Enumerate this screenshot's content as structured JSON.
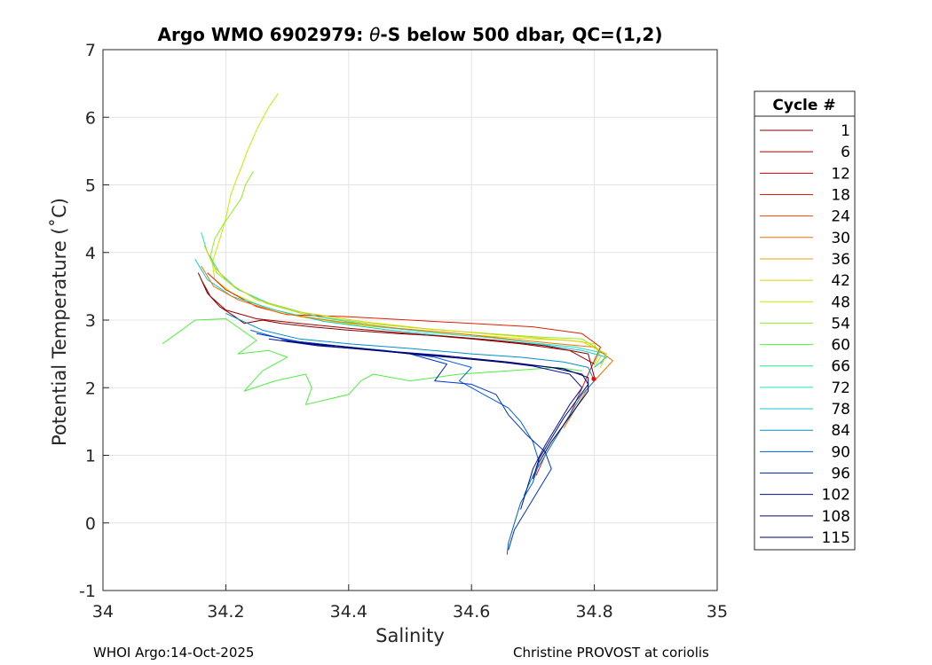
{
  "chart_data": {
    "type": "line",
    "title_prefix": "Argo WMO 6902979: ",
    "title_theta": "θ",
    "title_suffix": "-S below 500 dbar,  QC=(1,2)",
    "xlabel": "Salinity",
    "ylabel": "Potential Temperature (˚C)",
    "xlim": [
      34,
      35
    ],
    "ylim": [
      -1,
      7
    ],
    "xticks": [
      "34",
      "34.2",
      "34.4",
      "34.6",
      "34.8",
      "35"
    ],
    "yticks": [
      "-1",
      "0",
      "1",
      "2",
      "3",
      "4",
      "5",
      "6",
      "7"
    ],
    "grid": true,
    "legend": {
      "title": "Cycle #",
      "placement": "outside-right",
      "entries": [
        "1",
        "6",
        "12",
        "18",
        "24",
        "30",
        "36",
        "42",
        "48",
        "54",
        "60",
        "66",
        "72",
        "78",
        "84",
        "90",
        "96",
        "102",
        "108",
        "115"
      ],
      "colors": [
        "#7f0000",
        "#a00000",
        "#c80000",
        "#e01e00",
        "#f04000",
        "#f07000",
        "#e8a000",
        "#e0d000",
        "#c8e800",
        "#90ec20",
        "#50ee40",
        "#20e880",
        "#20e0c0",
        "#10c8d0",
        "#0090c8",
        "#0060d0",
        "#0030c8",
        "#0010a0",
        "#000878",
        "#000060"
      ]
    },
    "series": [
      {
        "color": "#c8e800",
        "values": [
          [
            34.285,
            6.35
          ],
          [
            34.27,
            6.15
          ],
          [
            34.252,
            5.85
          ],
          [
            34.235,
            5.5
          ],
          [
            34.225,
            5.25
          ],
          [
            34.218,
            5.1
          ],
          [
            34.208,
            4.85
          ],
          [
            34.2,
            4.5
          ],
          [
            34.192,
            4.25
          ],
          [
            34.185,
            4.05
          ],
          [
            34.178,
            3.85
          ],
          [
            34.182,
            3.6
          ],
          [
            34.21,
            3.4
          ],
          [
            34.26,
            3.2
          ],
          [
            34.32,
            3.05
          ],
          [
            34.42,
            2.92
          ],
          [
            34.52,
            2.84
          ],
          [
            34.6,
            2.78
          ],
          [
            34.68,
            2.73
          ],
          [
            34.76,
            2.7
          ],
          [
            34.8,
            2.65
          ],
          [
            34.81,
            2.45
          ],
          [
            34.8,
            2.3
          ]
        ]
      },
      {
        "color": "#90ec20",
        "values": [
          [
            34.245,
            5.2
          ],
          [
            34.232,
            5.0
          ],
          [
            34.225,
            4.8
          ],
          [
            34.21,
            4.6
          ],
          [
            34.195,
            4.4
          ],
          [
            34.182,
            4.2
          ],
          [
            34.175,
            3.95
          ],
          [
            34.185,
            3.7
          ],
          [
            34.215,
            3.48
          ],
          [
            34.265,
            3.25
          ],
          [
            34.33,
            3.08
          ],
          [
            34.43,
            2.95
          ],
          [
            34.54,
            2.86
          ],
          [
            34.63,
            2.8
          ],
          [
            34.71,
            2.75
          ],
          [
            34.78,
            2.72
          ],
          [
            34.81,
            2.55
          ],
          [
            34.8,
            2.35
          ]
        ]
      },
      {
        "color": "#e01e00",
        "values": [
          [
            34.17,
            3.7
          ],
          [
            34.2,
            3.45
          ],
          [
            34.25,
            3.2
          ],
          [
            34.3,
            3.08
          ],
          [
            34.4,
            3.05
          ],
          [
            34.5,
            3.0
          ],
          [
            34.6,
            2.95
          ],
          [
            34.7,
            2.9
          ],
          [
            34.78,
            2.8
          ],
          [
            34.81,
            2.6
          ],
          [
            34.8,
            2.4
          ],
          [
            34.79,
            2.2
          ],
          [
            34.78,
            2.0
          ],
          [
            34.76,
            1.6
          ],
          [
            34.74,
            1.3
          ],
          [
            34.72,
            1.0
          ],
          [
            34.705,
            0.7
          ]
        ]
      },
      {
        "color": "#50ee40",
        "values": [
          [
            34.097,
            2.65
          ],
          [
            34.12,
            2.8
          ],
          [
            34.15,
            3.0
          ],
          [
            34.2,
            3.02
          ],
          [
            34.25,
            2.7
          ],
          [
            34.22,
            2.5
          ],
          [
            34.27,
            2.55
          ],
          [
            34.3,
            2.45
          ],
          [
            34.26,
            2.25
          ],
          [
            34.23,
            1.95
          ],
          [
            34.28,
            2.1
          ],
          [
            34.33,
            2.2
          ],
          [
            34.34,
            2.0
          ],
          [
            34.33,
            1.75
          ],
          [
            34.4,
            1.9
          ],
          [
            34.42,
            2.1
          ],
          [
            34.44,
            2.2
          ],
          [
            34.5,
            2.1
          ],
          [
            34.58,
            2.2
          ],
          [
            34.66,
            2.25
          ],
          [
            34.74,
            2.3
          ],
          [
            34.78,
            2.25
          ]
        ]
      },
      {
        "color": "#20e0c0",
        "values": [
          [
            34.16,
            4.3
          ],
          [
            34.17,
            4.0
          ],
          [
            34.19,
            3.7
          ],
          [
            34.22,
            3.45
          ],
          [
            34.27,
            3.25
          ],
          [
            34.35,
            3.05
          ],
          [
            34.45,
            2.9
          ],
          [
            34.55,
            2.8
          ],
          [
            34.63,
            2.74
          ],
          [
            34.7,
            2.66
          ],
          [
            34.77,
            2.6
          ],
          [
            34.82,
            2.5
          ],
          [
            34.81,
            2.35
          ]
        ]
      },
      {
        "color": "#10c8d0",
        "values": [
          [
            34.15,
            3.9
          ],
          [
            34.17,
            3.6
          ],
          [
            34.21,
            3.35
          ],
          [
            34.28,
            3.15
          ],
          [
            34.36,
            2.98
          ],
          [
            34.46,
            2.86
          ],
          [
            34.56,
            2.76
          ],
          [
            34.64,
            2.7
          ],
          [
            34.72,
            2.63
          ],
          [
            34.78,
            2.55
          ],
          [
            34.82,
            2.45
          ],
          [
            34.8,
            2.3
          ]
        ]
      },
      {
        "color": "#f07000",
        "values": [
          [
            34.16,
            3.8
          ],
          [
            34.18,
            3.5
          ],
          [
            34.22,
            3.3
          ],
          [
            34.29,
            3.1
          ],
          [
            34.38,
            2.98
          ],
          [
            34.48,
            2.88
          ],
          [
            34.58,
            2.8
          ],
          [
            34.66,
            2.72
          ],
          [
            34.74,
            2.65
          ],
          [
            34.8,
            2.6
          ],
          [
            34.83,
            2.4
          ],
          [
            34.81,
            2.2
          ],
          [
            34.79,
            2.0
          ],
          [
            34.77,
            1.7
          ],
          [
            34.75,
            1.4
          ]
        ]
      },
      {
        "color": "#e0d000",
        "values": [
          [
            34.165,
            4.1
          ],
          [
            34.18,
            3.8
          ],
          [
            34.205,
            3.55
          ],
          [
            34.25,
            3.3
          ],
          [
            34.32,
            3.12
          ],
          [
            34.42,
            2.98
          ],
          [
            34.52,
            2.88
          ],
          [
            34.62,
            2.8
          ],
          [
            34.7,
            2.74
          ],
          [
            34.78,
            2.68
          ],
          [
            34.82,
            2.5
          ],
          [
            34.81,
            2.3
          ]
        ]
      },
      {
        "color": "#7f0000",
        "values": [
          [
            34.155,
            3.7
          ],
          [
            34.17,
            3.4
          ],
          [
            34.19,
            3.2
          ],
          [
            34.215,
            3.05
          ],
          [
            34.23,
            2.95
          ],
          [
            34.26,
            3.0
          ],
          [
            34.29,
            2.95
          ],
          [
            34.34,
            2.9
          ],
          [
            34.4,
            2.85
          ],
          [
            34.48,
            2.8
          ],
          [
            34.56,
            2.76
          ],
          [
            34.64,
            2.7
          ],
          [
            34.72,
            2.62
          ],
          [
            34.79,
            2.5
          ],
          [
            34.8,
            2.15
          ]
        ]
      },
      {
        "color": "#a00000",
        "values": [
          [
            34.16,
            3.6
          ],
          [
            34.175,
            3.35
          ],
          [
            34.2,
            3.15
          ],
          [
            34.25,
            3.02
          ],
          [
            34.32,
            2.95
          ],
          [
            34.4,
            2.88
          ],
          [
            34.5,
            2.8
          ],
          [
            34.6,
            2.72
          ],
          [
            34.68,
            2.65
          ],
          [
            34.76,
            2.55
          ],
          [
            34.8,
            2.35
          ]
        ]
      },
      {
        "color": "#0090c8",
        "values": [
          [
            34.2,
            3.1
          ],
          [
            34.26,
            2.85
          ],
          [
            34.32,
            2.72
          ],
          [
            34.4,
            2.65
          ],
          [
            34.5,
            2.58
          ],
          [
            34.6,
            2.5
          ],
          [
            34.68,
            2.45
          ],
          [
            34.75,
            2.38
          ],
          [
            34.79,
            2.3
          ],
          [
            34.8,
            2.1
          ],
          [
            34.78,
            1.9
          ],
          [
            34.76,
            1.6
          ],
          [
            34.74,
            1.3
          ],
          [
            34.72,
            1.0
          ],
          [
            34.7,
            0.7
          ],
          [
            34.685,
            0.4
          ]
        ]
      },
      {
        "color": "#0060d0",
        "values": [
          [
            34.24,
            2.85
          ],
          [
            34.3,
            2.7
          ],
          [
            34.38,
            2.62
          ],
          [
            34.46,
            2.55
          ],
          [
            34.54,
            2.45
          ],
          [
            34.6,
            2.3
          ],
          [
            34.58,
            2.1
          ],
          [
            34.62,
            1.9
          ],
          [
            34.66,
            1.7
          ],
          [
            34.68,
            1.5
          ],
          [
            34.7,
            1.2
          ],
          [
            34.71,
            0.9
          ],
          [
            34.7,
            0.6
          ],
          [
            34.68,
            0.3
          ],
          [
            34.67,
            0.0
          ],
          [
            34.66,
            -0.3
          ],
          [
            34.658,
            -0.47
          ]
        ]
      },
      {
        "color": "#0030c8",
        "values": [
          [
            34.25,
            2.8
          ],
          [
            34.32,
            2.68
          ],
          [
            34.42,
            2.58
          ],
          [
            34.5,
            2.5
          ],
          [
            34.56,
            2.35
          ],
          [
            34.54,
            2.1
          ],
          [
            34.6,
            2.05
          ],
          [
            34.64,
            1.9
          ],
          [
            34.66,
            1.6
          ],
          [
            34.69,
            1.3
          ],
          [
            34.72,
            1.05
          ],
          [
            34.73,
            0.8
          ],
          [
            34.71,
            0.5
          ],
          [
            34.69,
            0.2
          ],
          [
            34.67,
            -0.1
          ],
          [
            34.66,
            -0.4
          ]
        ]
      },
      {
        "color": "#0010a0",
        "values": [
          [
            34.27,
            2.72
          ],
          [
            34.35,
            2.62
          ],
          [
            34.45,
            2.55
          ],
          [
            34.55,
            2.48
          ],
          [
            34.63,
            2.4
          ],
          [
            34.7,
            2.32
          ],
          [
            34.76,
            2.2
          ],
          [
            34.78,
            2.0
          ],
          [
            34.76,
            1.75
          ],
          [
            34.74,
            1.45
          ],
          [
            34.72,
            1.15
          ],
          [
            34.7,
            0.8
          ],
          [
            34.69,
            0.5
          ],
          [
            34.68,
            0.2
          ]
        ]
      },
      {
        "color": "#000878",
        "values": [
          [
            34.29,
            2.7
          ],
          [
            34.38,
            2.6
          ],
          [
            34.48,
            2.52
          ],
          [
            34.58,
            2.45
          ],
          [
            34.66,
            2.38
          ],
          [
            34.73,
            2.3
          ],
          [
            34.78,
            2.2
          ],
          [
            34.79,
            2.05
          ],
          [
            34.77,
            1.8
          ],
          [
            34.75,
            1.55
          ],
          [
            34.73,
            1.25
          ],
          [
            34.71,
            0.95
          ],
          [
            34.7,
            0.65
          ]
        ]
      },
      {
        "color": "#000060",
        "values": [
          [
            34.3,
            2.68
          ],
          [
            34.4,
            2.6
          ],
          [
            34.5,
            2.5
          ],
          [
            34.6,
            2.42
          ],
          [
            34.68,
            2.35
          ],
          [
            34.75,
            2.28
          ],
          [
            34.79,
            2.15
          ],
          [
            34.79,
            1.95
          ],
          [
            34.77,
            1.7
          ],
          [
            34.75,
            1.45
          ],
          [
            34.73,
            1.2
          ],
          [
            34.71,
            0.9
          ]
        ]
      }
    ],
    "markers": [
      {
        "x": 34.799,
        "y": 2.13,
        "color": "#ff0000"
      }
    ]
  },
  "footer": {
    "left": "WHOI Argo:14-Oct-2025",
    "right": "Christine PROVOST at coriolis"
  }
}
